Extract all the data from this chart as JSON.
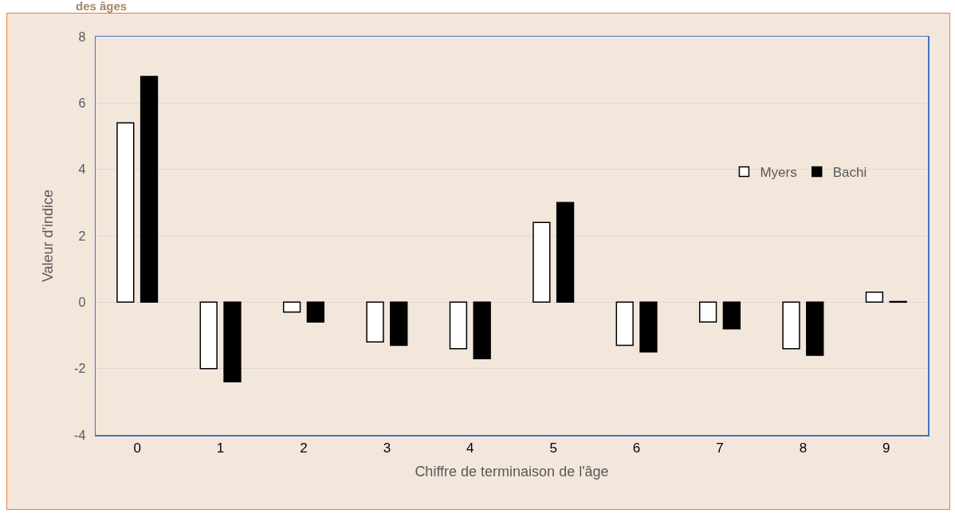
{
  "chart_data": {
    "type": "bar",
    "title": "des âges",
    "xlabel": "Chiffre de terminaison de l'âge",
    "ylabel": "Valeur d'indice",
    "categories": [
      "0",
      "1",
      "2",
      "3",
      "4",
      "5",
      "6",
      "7",
      "8",
      "9"
    ],
    "series": [
      {
        "name": "Myers",
        "color": "#ffffff",
        "values": [
          5.4,
          -2.0,
          -0.3,
          -1.2,
          -1.4,
          2.4,
          -1.3,
          -0.6,
          -1.4,
          0.3
        ]
      },
      {
        "name": "Bachi",
        "color": "#000000",
        "values": [
          6.8,
          -2.4,
          -0.6,
          -1.3,
          -1.7,
          3.0,
          -1.5,
          -0.8,
          -1.6,
          0.02
        ]
      }
    ],
    "ylim": [
      -4,
      8
    ],
    "yticks": [
      -4,
      -2,
      0,
      2,
      4,
      6,
      8
    ],
    "grid": "y",
    "legend": "right"
  }
}
